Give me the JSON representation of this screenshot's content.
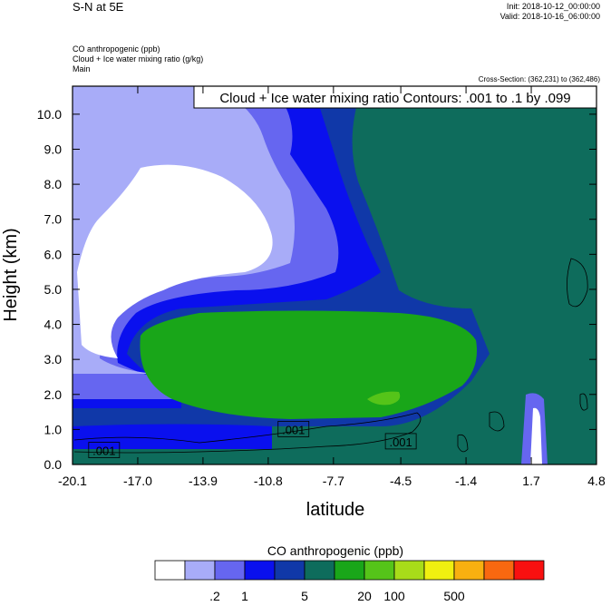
{
  "header": {
    "title": "S-N at 5E",
    "init": "Init: 2018-10-12_00:00:00",
    "valid": "Valid: 2018-10-16_06:00:00",
    "field1": "CO anthropogenic   (ppb)",
    "field2": "Cloud + Ice water mixing ratio   (g/kg)",
    "field3": "Main",
    "cross_section": "Cross-Section: (362,231) to (362,486)"
  },
  "chart_data": {
    "type": "heatmap",
    "title": "S-N at 5E",
    "xlabel": "latitude",
    "ylabel": "Height (km)",
    "xlim": [
      -20.1,
      4.8
    ],
    "ylim": [
      0.0,
      10.8
    ],
    "x_ticks": [
      "-20.1",
      "-17.0",
      "-13.9",
      "-10.8",
      "-7.7",
      "-4.5",
      "-1.4",
      "1.7",
      "4.8"
    ],
    "x_tick_values": [
      -20.1,
      -17.0,
      -13.9,
      -10.8,
      -7.7,
      -4.5,
      -1.4,
      1.7,
      4.8
    ],
    "y_ticks": [
      "0.0",
      "1.0",
      "2.0",
      "3.0",
      "4.0",
      "5.0",
      "6.0",
      "7.0",
      "8.0",
      "9.0",
      "10.0"
    ],
    "y_tick_values": [
      0,
      1,
      2,
      3,
      4,
      5,
      6,
      7,
      8,
      9,
      10
    ],
    "contour_title": "Cloud + Ice water mixing ratio Contours: .001 to .1 by .099",
    "contour_labels": [
      {
        "text": ".001",
        "x": -18.6,
        "y": 0.4
      },
      {
        "text": ".001",
        "x": -9.6,
        "y": 1.0
      },
      {
        "text": ".001",
        "x": -4.5,
        "y": 0.65
      }
    ],
    "colorbar": {
      "title": "CO anthropogenic  (ppb)",
      "colors": [
        "#ffffff",
        "#a8acf8",
        "#6666f0",
        "#0a10ee",
        "#1038a8",
        "#0e6c5c",
        "#19a619",
        "#55c419",
        "#a8dc19",
        "#f0f010",
        "#f8b010",
        "#f86810",
        "#f81010"
      ],
      "labels": [
        {
          "text": ".2",
          "after_box": 2
        },
        {
          "text": "1",
          "after_box": 3
        },
        {
          "text": "5",
          "after_box": 5
        },
        {
          "text": "20",
          "after_box": 7
        },
        {
          "text": "100",
          "after_box": 8
        },
        {
          "text": "500",
          "after_box": 10
        }
      ]
    }
  }
}
